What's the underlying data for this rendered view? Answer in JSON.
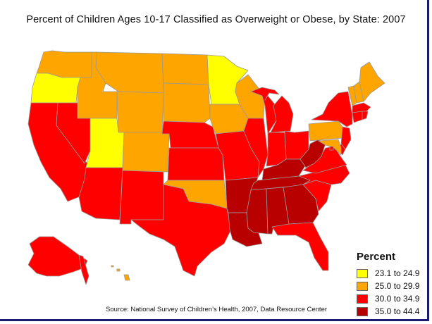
{
  "title": "Percent of Children Ages 10-17 Classified as Overweight or Obese, by State: 2007",
  "source": "Source: National Survey of Children’s Health, 2007, Data Resource Center",
  "legend": {
    "title": "Percent",
    "classes": [
      {
        "label": "23.1 to 24.9",
        "color": "#ffff00"
      },
      {
        "label": "25.0 to 29.9",
        "color": "#ffa500"
      },
      {
        "label": "30.0 to 34.9",
        "color": "#ff0000"
      },
      {
        "label": "35.0 to 44.4",
        "color": "#b80000"
      }
    ]
  },
  "state_classes": {
    "WA": 1,
    "OR": 0,
    "CA": 2,
    "NV": 2,
    "ID": 1,
    "MT": 1,
    "WY": 1,
    "UT": 0,
    "AZ": 2,
    "CO": 1,
    "NM": 2,
    "ND": 1,
    "SD": 1,
    "NE": 2,
    "KS": 2,
    "OK": 1,
    "TX": 2,
    "MN": 0,
    "IA": 1,
    "MO": 2,
    "AR": 3,
    "LA": 3,
    "WI": 1,
    "IL": 2,
    "MI": 2,
    "IN": 2,
    "OH": 2,
    "KY": 3,
    "TN": 3,
    "MS": 3,
    "AL": 3,
    "GA": 3,
    "FL": 2,
    "SC": 2,
    "NC": 2,
    "VA": 2,
    "WV": 3,
    "PA": 1,
    "NY": 2,
    "VT": 1,
    "NH": 1,
    "ME": 1,
    "MA": 2,
    "CT": 2,
    "RI": 2,
    "NJ": 2,
    "DE": 2,
    "MD": 1,
    "DC": 2,
    "AK": 2,
    "HI": 1
  }
}
